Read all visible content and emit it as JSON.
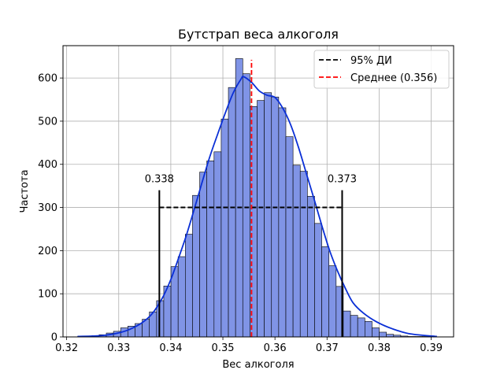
{
  "chart_data": {
    "type": "histogram",
    "title": "Бутстрап веса алкоголя",
    "xlabel": "Вес алкоголя",
    "ylabel": "Частота",
    "xlim": [
      0.3193,
      0.3943
    ],
    "ylim": [
      0,
      675
    ],
    "grid": true,
    "legend_position": "top-right",
    "x_ticks": [
      0.32,
      0.33,
      0.34,
      0.35,
      0.36,
      0.37,
      0.38,
      0.39
    ],
    "x_tick_labels": [
      "0.32",
      "0.33",
      "0.34",
      "0.35",
      "0.36",
      "0.37",
      "0.38",
      "0.39"
    ],
    "y_ticks": [
      0,
      100,
      200,
      300,
      400,
      500,
      600
    ],
    "y_tick_labels": [
      "0",
      "100",
      "200",
      "300",
      "400",
      "500",
      "600"
    ],
    "bins": {
      "start": 0.3221,
      "width": 0.001379,
      "counts": [
        1,
        2,
        3,
        5,
        9,
        13,
        21,
        25,
        31,
        41,
        58,
        84,
        118,
        163,
        186,
        238,
        328,
        382,
        408,
        429,
        505,
        578,
        645,
        610,
        534,
        548,
        566,
        556,
        531,
        464,
        398,
        384,
        326,
        263,
        209,
        165,
        117,
        60,
        50,
        44,
        36,
        21,
        11,
        6,
        4,
        2,
        1,
        1,
        1,
        0
      ]
    },
    "kde": {
      "x": [
        0.3221,
        0.3265,
        0.3295,
        0.332,
        0.3345,
        0.3365,
        0.3385,
        0.34,
        0.3415,
        0.343,
        0.3445,
        0.346,
        0.3475,
        0.349,
        0.3505,
        0.352,
        0.3535,
        0.354,
        0.3555,
        0.357,
        0.3585,
        0.36,
        0.3615,
        0.363,
        0.3645,
        0.366,
        0.3675,
        0.369,
        0.3705,
        0.372,
        0.3735,
        0.375,
        0.377,
        0.3795,
        0.3825,
        0.386,
        0.3911
      ],
      "y": [
        1,
        3,
        8,
        17,
        33,
        55,
        93,
        133,
        183,
        236,
        296,
        358,
        418,
        470,
        520,
        566,
        598,
        603,
        590,
        570,
        560,
        555,
        530,
        492,
        440,
        380,
        320,
        258,
        200,
        153,
        113,
        79,
        55,
        35,
        19,
        7,
        1
      ]
    },
    "ci": {
      "label": "95% ДИ",
      "lower": 0.3378,
      "upper": 0.3729,
      "lower_label": "0.338",
      "upper_label": "0.373",
      "bar_height": 340,
      "line_level": 300,
      "color": "#000000"
    },
    "mean": {
      "label": "Среднее (0.356)",
      "value": 0.3555,
      "color": "#ff0000"
    },
    "colors": {
      "bars": "#8094e6",
      "bar_edge": "#000000",
      "kde": "#0a2fd6"
    }
  }
}
